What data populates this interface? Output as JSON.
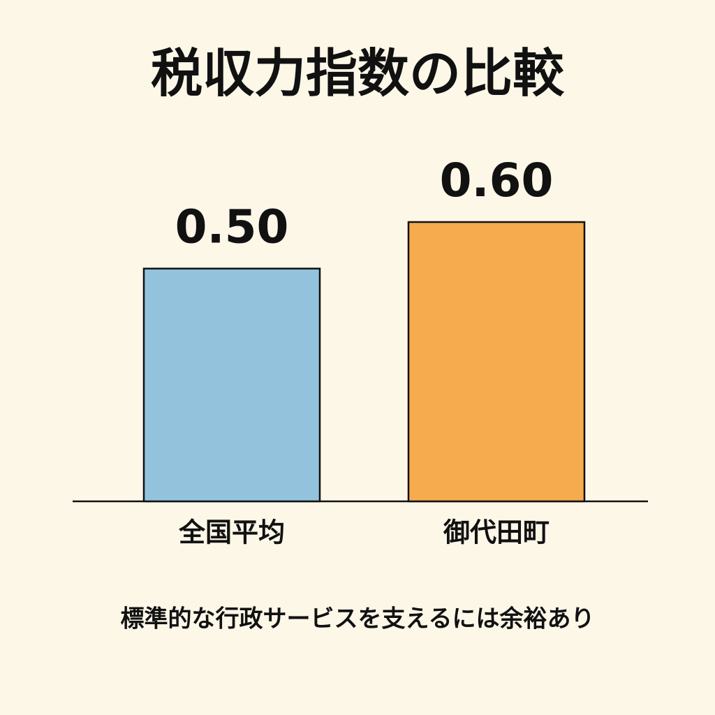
{
  "chart_data": {
    "type": "bar",
    "title": "税収力指数の比較",
    "categories": [
      "全国平均",
      "御代田町"
    ],
    "values": [
      0.5,
      0.6
    ],
    "value_labels": [
      "0.50",
      "0.60"
    ],
    "colors": [
      "#93c3dc",
      "#f5ab4e"
    ],
    "annotation": "標準的な行政サービスを支えるには余裕あり"
  }
}
